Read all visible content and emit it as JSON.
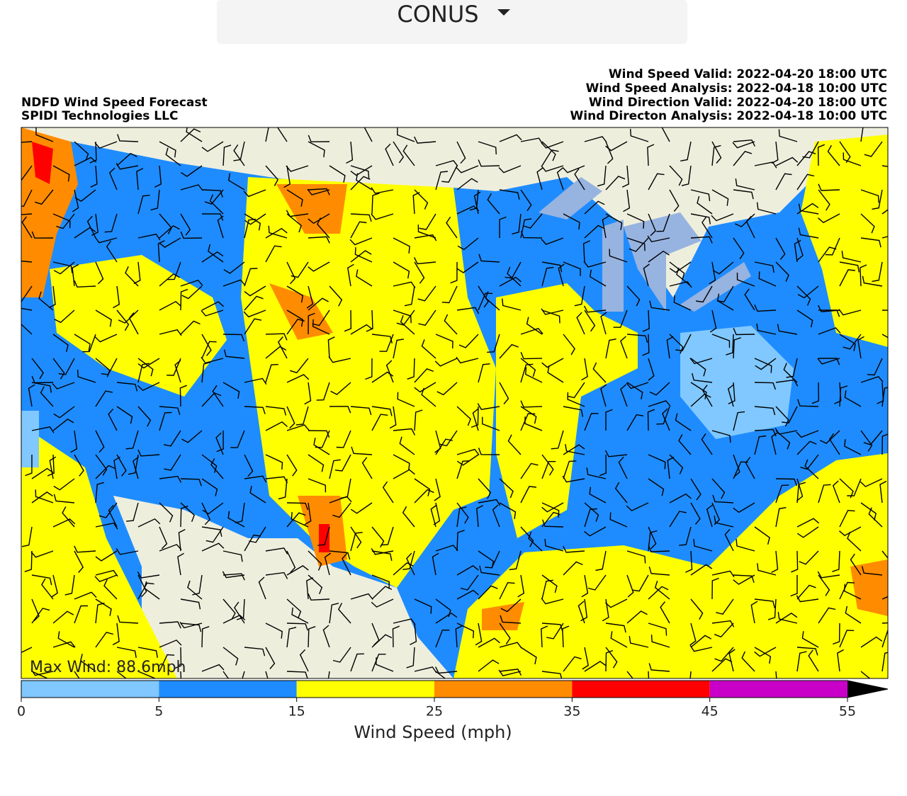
{
  "dropdown": {
    "label": "CONUS"
  },
  "header": {
    "left": [
      "NDFD Wind Speed Forecast",
      "SPIDI Technologies LLC"
    ],
    "right": [
      "Wind Speed Valid: 2022-04-20 18:00 UTC",
      "Wind Speed Analysis: 2022-04-18 10:00 UTC",
      "Wind Direction Valid: 2022-04-20 18:00 UTC",
      "Wind Directon Analysis: 2022-04-18 10:00 UTC"
    ]
  },
  "map": {
    "max_wind": "Max Wind: 88.6mph"
  },
  "colorbar": {
    "ticks": [
      0,
      5,
      15,
      25,
      35,
      45,
      55
    ],
    "colors": [
      "#80c8ff",
      "#1e8cff",
      "#ffff00",
      "#ff8c00",
      "#ff0000",
      "#c800c8"
    ],
    "label": "Wind Speed (mph)"
  }
}
